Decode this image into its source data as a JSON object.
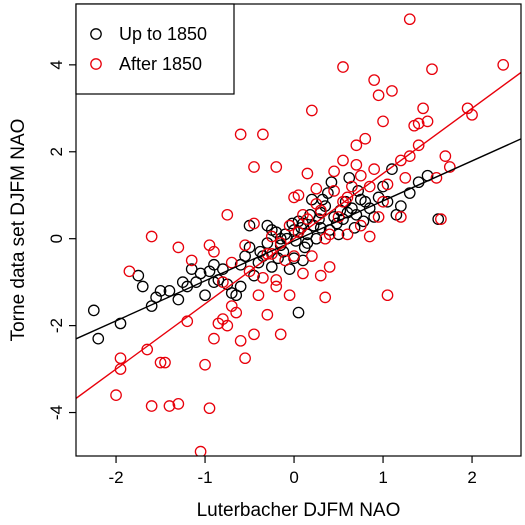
{
  "chart_data": {
    "type": "scatter",
    "xlabel": "Luterbacher DJFM NAO",
    "ylabel": "Torne data set DJFM NAO",
    "xlim": [
      -2.45,
      2.55
    ],
    "ylim": [
      -5.0,
      5.4
    ],
    "xticks": [
      -2,
      -1,
      0,
      1,
      2
    ],
    "yticks": [
      -4,
      -2,
      0,
      2,
      4
    ],
    "legend": {
      "position": "top-left"
    },
    "series": [
      {
        "name": "Up to 1850",
        "color": "#000000",
        "marker": "open-circle",
        "fit": {
          "intercept": -0.05,
          "slope": 0.92
        },
        "points": [
          [
            -2.25,
            -1.65
          ],
          [
            -2.2,
            -2.3
          ],
          [
            -1.95,
            -1.95
          ],
          [
            -1.75,
            -0.85
          ],
          [
            -1.7,
            -1.1
          ],
          [
            -1.6,
            -1.55
          ],
          [
            -1.55,
            -1.35
          ],
          [
            -1.5,
            -1.2
          ],
          [
            -1.4,
            -1.2
          ],
          [
            -1.3,
            -1.4
          ],
          [
            -1.25,
            -1.0
          ],
          [
            -1.2,
            -1.1
          ],
          [
            -1.15,
            -0.7
          ],
          [
            -1.1,
            -1.0
          ],
          [
            -1.05,
            -0.8
          ],
          [
            -1.0,
            -1.3
          ],
          [
            -0.95,
            -0.75
          ],
          [
            -0.9,
            -0.6
          ],
          [
            -0.9,
            -1.0
          ],
          [
            -0.85,
            -0.95
          ],
          [
            -0.8,
            -0.7
          ],
          [
            -0.75,
            -1.05
          ],
          [
            -0.7,
            -1.25
          ],
          [
            -0.65,
            -1.3
          ],
          [
            -0.6,
            -1.1
          ],
          [
            -0.6,
            -0.6
          ],
          [
            -0.55,
            -0.4
          ],
          [
            -0.5,
            -0.2
          ],
          [
            -0.45,
            -0.85
          ],
          [
            -0.4,
            -0.55
          ],
          [
            -0.38,
            -0.3
          ],
          [
            -0.35,
            -0.4
          ],
          [
            -0.3,
            -0.1
          ],
          [
            -0.25,
            -0.65
          ],
          [
            -0.2,
            0.15
          ],
          [
            -0.18,
            -0.45
          ],
          [
            -0.15,
            0.0
          ],
          [
            -0.12,
            -0.3
          ],
          [
            -0.1,
            0.1
          ],
          [
            -0.08,
            0.0
          ],
          [
            -0.05,
            -0.7
          ],
          [
            -0.02,
            0.35
          ],
          [
            0.0,
            0.2
          ],
          [
            0.02,
            -0.05
          ],
          [
            0.05,
            0.4
          ],
          [
            0.08,
            0.25
          ],
          [
            0.1,
            -0.5
          ],
          [
            0.12,
            -0.2
          ],
          [
            0.15,
            0.1
          ],
          [
            0.18,
            0.55
          ],
          [
            0.2,
            0.9
          ],
          [
            0.22,
            0.3
          ],
          [
            0.25,
            0.0
          ],
          [
            0.28,
            0.45
          ],
          [
            0.3,
            0.6
          ],
          [
            0.32,
            0.9
          ],
          [
            0.35,
            0.75
          ],
          [
            0.38,
            1.05
          ],
          [
            0.4,
            0.2
          ],
          [
            0.42,
            1.3
          ],
          [
            0.45,
            0.5
          ],
          [
            0.48,
            0.35
          ],
          [
            0.5,
            0.1
          ],
          [
            0.52,
            0.65
          ],
          [
            0.55,
            0.45
          ],
          [
            0.58,
            0.85
          ],
          [
            0.6,
            0.6
          ],
          [
            0.62,
            1.4
          ],
          [
            0.65,
            0.7
          ],
          [
            0.68,
            0.25
          ],
          [
            0.7,
            0.55
          ],
          [
            0.72,
            1.1
          ],
          [
            0.75,
            0.9
          ],
          [
            0.78,
            0.4
          ],
          [
            0.8,
            0.85
          ],
          [
            0.85,
            0.7
          ],
          [
            0.9,
            0.5
          ],
          [
            0.95,
            0.95
          ],
          [
            1.0,
            1.2
          ],
          [
            1.05,
            0.85
          ],
          [
            1.1,
            1.6
          ],
          [
            1.15,
            0.55
          ],
          [
            1.2,
            0.75
          ],
          [
            1.3,
            1.05
          ],
          [
            1.4,
            1.3
          ],
          [
            1.5,
            1.45
          ],
          [
            1.62,
            0.45
          ],
          [
            0.05,
            -1.7
          ],
          [
            -0.3,
            0.3
          ],
          [
            -0.5,
            0.3
          ],
          [
            0.1,
            0.35
          ],
          [
            0.3,
            0.25
          ],
          [
            -0.15,
            -0.15
          ],
          [
            0.0,
            -0.45
          ],
          [
            -0.25,
            0.2
          ],
          [
            0.15,
            -0.1
          ]
        ]
      },
      {
        "name": "After 1850",
        "color": "#e8000b",
        "marker": "open-circle",
        "fit": {
          "intercept": 0.0,
          "slope": 1.5
        },
        "points": [
          [
            -1.95,
            -2.75
          ],
          [
            -1.95,
            -3.0
          ],
          [
            -2.0,
            -3.6
          ],
          [
            -1.65,
            -2.55
          ],
          [
            -1.5,
            -2.85
          ],
          [
            -1.45,
            -2.85
          ],
          [
            -1.4,
            -3.85
          ],
          [
            -1.3,
            -3.8
          ],
          [
            -1.2,
            -1.9
          ],
          [
            -1.0,
            -2.9
          ],
          [
            -0.95,
            -3.9
          ],
          [
            -0.9,
            -2.3
          ],
          [
            -0.85,
            -1.95
          ],
          [
            -0.8,
            -1.85
          ],
          [
            -0.75,
            -2.0
          ],
          [
            -0.7,
            -1.55
          ],
          [
            -0.65,
            -1.7
          ],
          [
            -0.6,
            -2.35
          ],
          [
            -0.55,
            -2.75
          ],
          [
            -0.5,
            -0.75
          ],
          [
            -0.45,
            -2.2
          ],
          [
            -0.4,
            -1.3
          ],
          [
            -0.35,
            -0.9
          ],
          [
            -0.3,
            -1.75
          ],
          [
            -0.25,
            -0.35
          ],
          [
            -0.2,
            -1.1
          ],
          [
            -0.15,
            -2.2
          ],
          [
            -0.1,
            -0.5
          ],
          [
            -0.05,
            -1.3
          ],
          [
            0.0,
            -0.4
          ],
          [
            0.05,
            0.15
          ],
          [
            0.1,
            -0.8
          ],
          [
            0.15,
            0.45
          ],
          [
            0.2,
            -0.4
          ],
          [
            0.25,
            0.8
          ],
          [
            0.3,
            -0.85
          ],
          [
            0.35,
            0.0
          ],
          [
            0.4,
            -0.65
          ],
          [
            0.45,
            1.1
          ],
          [
            0.5,
            0.5
          ],
          [
            0.55,
            1.8
          ],
          [
            0.6,
            0.1
          ],
          [
            0.65,
            1.2
          ],
          [
            0.7,
            1.7
          ],
          [
            0.75,
            0.3
          ],
          [
            0.8,
            2.3
          ],
          [
            0.85,
            1.2
          ],
          [
            0.9,
            1.6
          ],
          [
            0.95,
            0.5
          ],
          [
            1.0,
            2.7
          ],
          [
            1.05,
            1.25
          ],
          [
            1.1,
            3.4
          ],
          [
            1.2,
            1.8
          ],
          [
            1.3,
            1.9
          ],
          [
            1.35,
            2.6
          ],
          [
            1.4,
            2.65
          ],
          [
            1.45,
            3.0
          ],
          [
            1.5,
            2.7
          ],
          [
            1.55,
            3.9
          ],
          [
            1.7,
            1.9
          ],
          [
            1.75,
            1.65
          ],
          [
            1.95,
            3.0
          ],
          [
            2.0,
            2.85
          ],
          [
            2.35,
            4.0
          ],
          [
            1.3,
            5.05
          ],
          [
            0.55,
            3.95
          ],
          [
            0.95,
            3.3
          ],
          [
            -1.05,
            -4.9
          ],
          [
            -1.6,
            -3.85
          ],
          [
            -1.85,
            -0.75
          ],
          [
            -0.35,
            2.4
          ],
          [
            -0.6,
            2.4
          ],
          [
            -0.2,
            1.65
          ],
          [
            -0.45,
            1.65
          ],
          [
            0.2,
            2.95
          ],
          [
            -1.3,
            -0.2
          ],
          [
            -1.6,
            0.05
          ],
          [
            -1.15,
            -0.5
          ],
          [
            -0.9,
            -0.3
          ],
          [
            -0.7,
            -0.55
          ],
          [
            -0.55,
            -0.15
          ],
          [
            -0.25,
            0.05
          ],
          [
            -0.05,
            0.3
          ],
          [
            0.05,
            1.0
          ],
          [
            0.15,
            1.5
          ],
          [
            0.3,
            0.65
          ],
          [
            0.45,
            1.55
          ],
          [
            0.6,
            0.95
          ],
          [
            0.7,
            2.15
          ],
          [
            0.85,
            0.05
          ],
          [
            1.05,
            -1.3
          ],
          [
            1.2,
            0.5
          ],
          [
            1.4,
            2.15
          ],
          [
            1.6,
            1.4
          ],
          [
            0.35,
            -1.35
          ],
          [
            0.9,
            3.65
          ],
          [
            -0.45,
            0.35
          ],
          [
            -0.75,
            0.55
          ],
          [
            -0.95,
            -0.15
          ],
          [
            0.0,
            0.95
          ],
          [
            0.25,
            1.15
          ],
          [
            0.55,
            0.85
          ],
          [
            0.75,
            1.45
          ],
          [
            1.0,
            0.85
          ],
          [
            1.25,
            1.4
          ],
          [
            -0.15,
            -0.1
          ],
          [
            0.1,
            0.55
          ],
          [
            -0.3,
            -0.35
          ],
          [
            0.4,
            0.1
          ],
          [
            -0.8,
            -1.0
          ],
          [
            -0.2,
            -0.95
          ],
          [
            1.65,
            0.45
          ]
        ]
      }
    ]
  }
}
